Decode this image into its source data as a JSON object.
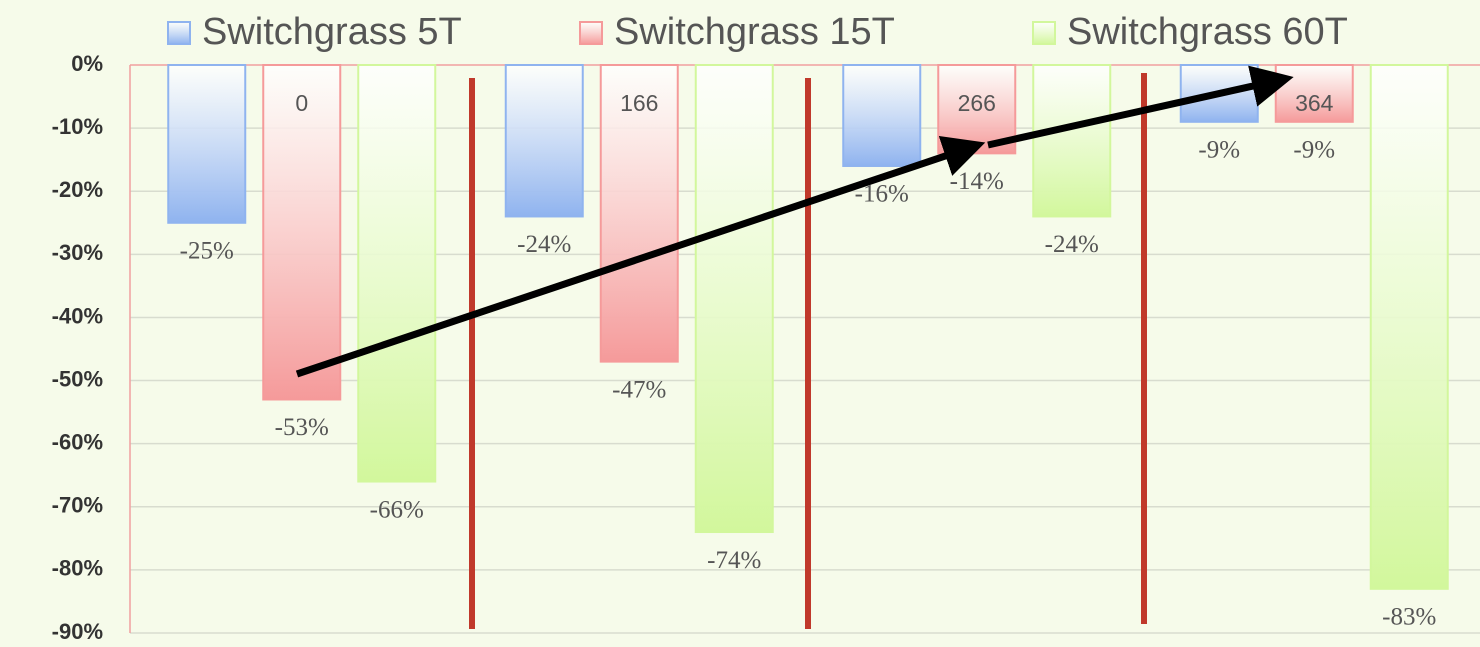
{
  "chart_data": {
    "type": "bar",
    "categories": [
      null,
      null,
      null,
      null
    ],
    "series": [
      {
        "name": "Switchgrass 5T",
        "color": "#8fb3ef",
        "values": [
          -25,
          -24,
          -16,
          -9
        ],
        "value_labels": [
          "-25%",
          "-24%",
          "-16%",
          "-9%"
        ]
      },
      {
        "name": "Switchgrass 15T",
        "color": "#f59a9a",
        "values": [
          -53,
          -47,
          -14,
          -9
        ],
        "value_labels": [
          "-53%",
          "-47%",
          "-14%",
          "-9%"
        ]
      },
      {
        "name": "Switchgrass 60T",
        "color": "#d2f79c",
        "values": [
          -66,
          -74,
          -24,
          -83
        ],
        "value_labels": [
          "-66%",
          "-74%",
          "-24%",
          "-83%"
        ]
      }
    ],
    "annotations": [
      "0",
      "166",
      "266",
      "364"
    ],
    "ylim": [
      -90,
      0
    ],
    "yticks": [
      {
        "value": 0,
        "label": "0%"
      },
      {
        "value": -10,
        "label": "-10%"
      },
      {
        "value": -20,
        "label": "-20%"
      },
      {
        "value": -30,
        "label": "-30%"
      },
      {
        "value": -40,
        "label": "-40%"
      },
      {
        "value": -50,
        "label": "-50%"
      },
      {
        "value": -60,
        "label": "-60%"
      },
      {
        "value": -70,
        "label": "-70%"
      },
      {
        "value": -80,
        "label": "-80%"
      },
      {
        "value": -90,
        "label": "-90%"
      }
    ],
    "grid": true
  }
}
